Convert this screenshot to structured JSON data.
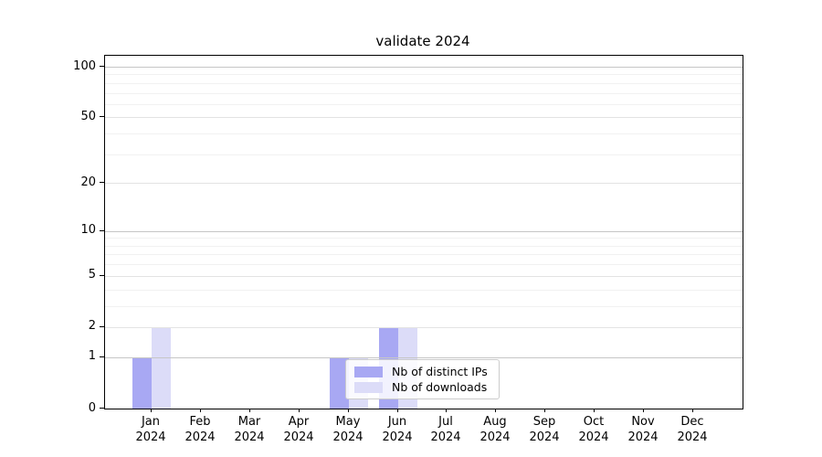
{
  "title": "validate 2024",
  "chart_data": {
    "type": "bar",
    "title": "validate 2024",
    "categories": [
      "Jan",
      "Feb",
      "Mar",
      "Apr",
      "May",
      "Jun",
      "Jul",
      "Aug",
      "Sep",
      "Oct",
      "Nov",
      "Dec"
    ],
    "category_year": "2024",
    "series": [
      {
        "name": "Nb of distinct IPs",
        "color": "#a8a8f3",
        "values": [
          1,
          0,
          0,
          0,
          1,
          2,
          0,
          0,
          0,
          0,
          0,
          0
        ]
      },
      {
        "name": "Nb of downloads",
        "color": "#dcdcf8",
        "values": [
          2,
          0,
          0,
          0,
          1,
          2,
          0,
          0,
          0,
          0,
          0,
          0
        ]
      }
    ],
    "y_scale": "log1p",
    "ylim": [
      0,
      112
    ],
    "y_ticks": [
      0,
      1,
      2,
      5,
      10,
      20,
      50,
      100
    ],
    "y_minor_ticks": [
      3,
      4,
      6,
      7,
      8,
      9,
      30,
      40,
      60,
      70,
      80,
      90
    ],
    "grid": "horizontal",
    "grid_color_power10": "#c6c6c6",
    "grid_color_major": "#e3e3e3",
    "grid_color_minor": "#f1f1f1",
    "legend": {
      "position": "lower-center",
      "entries": [
        "Nb of distinct IPs",
        "Nb of downloads"
      ]
    }
  }
}
